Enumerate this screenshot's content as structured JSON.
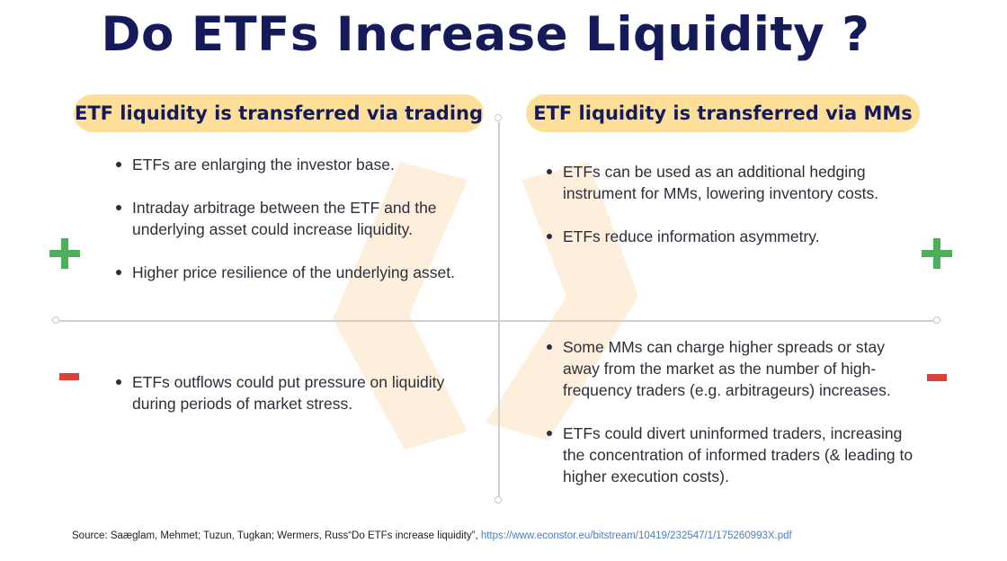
{
  "title": "Do ETFs Increase Liquidity ?",
  "left_header": "ETF liquidity is transferred via trading",
  "right_header": "ETF liquidity is transferred via MMs",
  "signs": {
    "plus": "+",
    "minus": "−"
  },
  "quadrants": {
    "top_left": [
      "ETFs are enlarging the investor base.",
      "Intraday arbitrage between the ETF and the underlying asset could increase liquidity.",
      "Higher price resilience of the underlying asset."
    ],
    "top_right": [
      "ETFs can be used as an additional hedging instrument for MMs, lowering inventory costs.",
      "ETFs reduce information asymmetry."
    ],
    "bottom_left": [
      "ETFs outflows could put pressure on liquidity during periods of market stress."
    ],
    "bottom_right": [
      "Some MMs can charge higher spreads or stay away from the market as the number of  high-frequency traders (e.g. arbitrageurs) increases.",
      "ETFs could divert uninformed traders, increasing the concentration of informed traders (& leading to higher execution costs)."
    ]
  },
  "source": {
    "text": "Source: Saæglam, Mehmet; Tuzun, Tugkan; Wermers, Russ“Do ETFs increase liquidity”, ",
    "link": "https://www.econstor.eu/bitstream/10419/232547/1/175260993X.pdf"
  },
  "colors": {
    "title": "#141a5a",
    "pill": "#fddf9a",
    "plus": "#4cb05a",
    "minus": "#d8433c",
    "watermark": "#fdebd3"
  },
  "icons": {
    "plus": "plus-icon",
    "minus": "minus-icon",
    "watermark": "brand-logo-watermark"
  }
}
